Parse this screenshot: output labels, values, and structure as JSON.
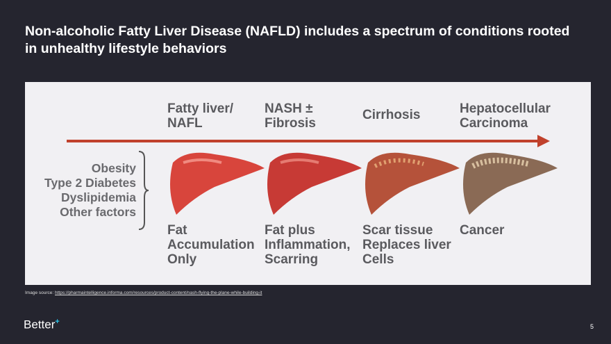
{
  "title": "Non-alcoholic Fatty Liver Disease (NAFLD) includes a spectrum of conditions rooted in unhealthy lifestyle behaviors",
  "stages": [
    {
      "heading": "Fatty liver/\nNAFL",
      "description": "Fat\nAccumulation\nOnly",
      "color": "#d8453c"
    },
    {
      "heading": "NASH ±\nFibrosis",
      "description": "Fat plus\nInflammation,\nScarring",
      "color": "#c73a35"
    },
    {
      "heading": "Cirrhosis",
      "description": "Scar tissue\nReplaces liver\nCells",
      "color": "#b5523a"
    },
    {
      "heading": "Hepatocellular\nCarcinoma",
      "description": "Cancer",
      "color": "#8a6a55"
    }
  ],
  "risk_factors": [
    "Obesity",
    "Type 2 Diabetes",
    "Dyslipidemia",
    "Other factors"
  ],
  "source_label": "Image source:",
  "source_url": "https://pharmaintelligence.informa.com/resources/product-content/nash-flying-the-plane-while-building-it",
  "logo": "Better",
  "page_number": "5",
  "arrow_color": "#c0412c"
}
